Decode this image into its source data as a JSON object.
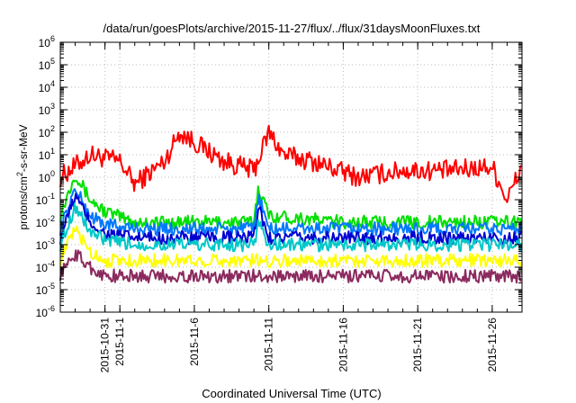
{
  "chart_data": {
    "type": "line",
    "title": "/data/run/goesPlots/archive/2015-11-27/flux/../flux/31daysMoonFluxes.txt",
    "xlabel": "Coordinated Universal Time (UTC)",
    "ylabel_parts": [
      "protons/cm",
      "2",
      "-s-sr-MeV"
    ],
    "yscale": "log",
    "ylim": [
      1e-06,
      1000000.0
    ],
    "y_ticks": [
      {
        "base": "10",
        "exp": "-6"
      },
      {
        "base": "10",
        "exp": "-5"
      },
      {
        "base": "10",
        "exp": "-4"
      },
      {
        "base": "10",
        "exp": "-3"
      },
      {
        "base": "10",
        "exp": "-2"
      },
      {
        "base": "10",
        "exp": "-1"
      },
      {
        "base": "10",
        "exp": "0"
      },
      {
        "base": "10",
        "exp": "1"
      },
      {
        "base": "10",
        "exp": "2"
      },
      {
        "base": "10",
        "exp": "3"
      },
      {
        "base": "10",
        "exp": "4"
      },
      {
        "base": "10",
        "exp": "5"
      },
      {
        "base": "10",
        "exp": "6"
      }
    ],
    "xlim": [
      "2015-10-28",
      "2015-11-28"
    ],
    "x_ticks": [
      "2015-10-31",
      "2015-11-1",
      "2015-11-6",
      "2015-11-11",
      "2015-11-16",
      "2015-11-21",
      "2015-11-26"
    ],
    "grid": true,
    "series": [
      {
        "color": "#ff0000",
        "x": [
          "2015-10-28",
          "2015-10-30",
          "2015-11-1",
          "2015-11-2",
          "2015-11-4",
          "2015-11-5",
          "2015-11-8",
          "2015-11-10",
          "2015-11-11",
          "2015-11-12",
          "2015-11-14",
          "2015-11-17",
          "2015-11-20",
          "2015-11-23",
          "2015-11-26",
          "2015-11-27",
          "2015-11-28"
        ],
        "y": [
          1,
          10,
          5,
          0.5,
          5,
          100,
          5,
          2,
          100,
          10,
          5,
          1,
          2,
          2,
          3,
          0.1,
          3
        ]
      },
      {
        "color": "#00e000",
        "x": [
          "2015-10-28",
          "2015-10-29",
          "2015-10-30",
          "2015-10-31",
          "2015-11-2",
          "2015-11-6",
          "2015-11-10",
          "2015-11-10.3",
          "2015-11-11",
          "2015-11-16",
          "2015-11-22",
          "2015-11-28"
        ],
        "y": [
          0.02,
          1.5,
          0.1,
          0.03,
          0.01,
          0.01,
          0.01,
          0.4,
          0.02,
          0.01,
          0.01,
          0.01
        ]
      },
      {
        "color": "#0078ff",
        "x": [
          "2015-10-28",
          "2015-10-29",
          "2015-10-30",
          "2015-10-31",
          "2015-11-2",
          "2015-11-6",
          "2015-11-10",
          "2015-11-10.3",
          "2015-11-11",
          "2015-11-16",
          "2015-11-22",
          "2015-11-28"
        ],
        "y": [
          0.005,
          0.3,
          0.02,
          0.008,
          0.005,
          0.005,
          0.005,
          0.15,
          0.005,
          0.005,
          0.005,
          0.005
        ]
      },
      {
        "color": "#0000d0",
        "x": [
          "2015-10-28",
          "2015-10-29",
          "2015-10-30",
          "2015-10-31",
          "2015-11-2",
          "2015-11-6",
          "2015-11-10",
          "2015-11-10.3",
          "2015-11-11",
          "2015-11-16",
          "2015-11-22",
          "2015-11-28"
        ],
        "y": [
          0.002,
          0.15,
          0.01,
          0.003,
          0.002,
          0.002,
          0.002,
          0.05,
          0.002,
          0.002,
          0.002,
          0.002
        ]
      },
      {
        "color": "#00c8c8",
        "x": [
          "2015-10-28",
          "2015-10-29",
          "2015-10-30",
          "2015-10-31",
          "2015-11-2",
          "2015-11-6",
          "2015-11-10",
          "2015-11-10.3",
          "2015-11-11",
          "2015-11-16",
          "2015-11-22",
          "2015-11-28"
        ],
        "y": [
          0.001,
          0.05,
          0.004,
          0.0015,
          0.001,
          0.001,
          0.001,
          0.01,
          0.001,
          0.001,
          0.001,
          0.001
        ]
      },
      {
        "color": "#ffff00",
        "x": [
          "2015-10-28",
          "2015-10-29",
          "2015-10-30",
          "2015-10-31",
          "2015-11-6",
          "2015-11-11",
          "2015-11-16",
          "2015-11-22",
          "2015-11-28"
        ],
        "y": [
          0.0002,
          0.005,
          0.0005,
          0.0002,
          0.0002,
          0.0002,
          0.0002,
          0.0002,
          0.0002
        ]
      },
      {
        "color": "#8b2a5e",
        "x": [
          "2015-10-28",
          "2015-10-29",
          "2015-10-30",
          "2015-10-31",
          "2015-11-6",
          "2015-11-11",
          "2015-11-16",
          "2015-11-22",
          "2015-11-28"
        ],
        "y": [
          5e-05,
          0.0004,
          0.0001,
          4e-05,
          4e-05,
          4e-05,
          4e-05,
          4e-05,
          4e-05
        ]
      }
    ]
  }
}
